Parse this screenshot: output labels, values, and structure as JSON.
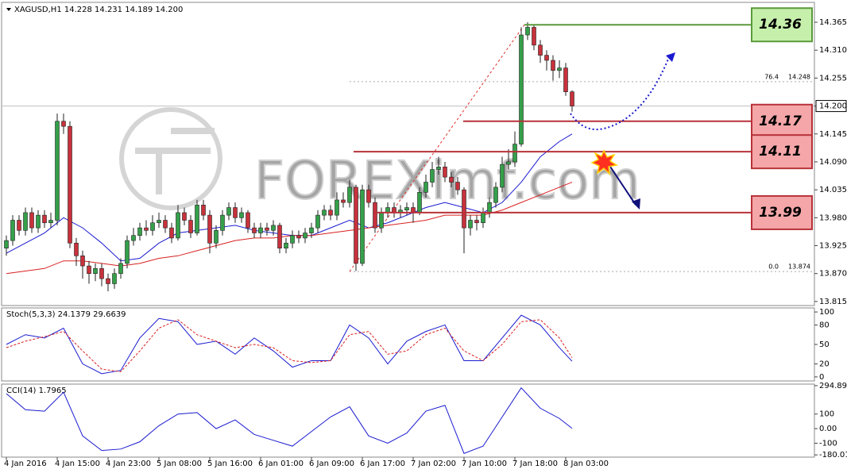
{
  "chart_data": [
    {
      "type": "candlestick",
      "header": "XAGUSD,H1 14.228 14.231 14.189 14.200",
      "up_color": "#35a04a",
      "down_color": "#c8323c",
      "open": [
        13.92,
        13.935,
        13.975,
        13.955,
        13.99,
        13.96,
        13.985,
        13.97,
        13.975,
        14.17,
        14.16,
        13.93,
        13.905,
        13.885,
        13.87,
        13.88,
        13.86,
        13.85,
        13.87,
        13.89,
        13.935,
        13.945,
        13.96,
        13.955,
        13.97,
        13.975,
        13.96,
        13.94,
        13.99,
        13.975,
        13.95,
        14.005,
        13.985,
        13.93,
        13.955,
        13.985,
        14.0,
        13.98,
        13.99,
        13.96,
        13.95,
        13.96,
        13.955,
        13.965,
        13.92,
        13.93,
        13.945,
        13.94,
        13.95,
        13.96,
        13.985,
        13.995,
        13.985,
        14.015,
        14.01,
        14.04,
        13.89,
        14.035,
        14.01,
        13.96,
        13.99,
        14.0,
        13.99,
        13.995,
        14.0,
        13.99,
        14.03,
        14.05,
        14.075,
        14.08,
        14.06,
        14.05,
        14.035,
        13.96,
        13.975,
        13.97,
        13.99,
        14.01,
        14.04,
        14.085,
        14.09,
        14.125,
        14.34,
        14.355,
        14.32,
        14.3,
        14.29,
        14.27,
        14.275,
        14.228
      ],
      "high": [
        13.945,
        13.985,
        13.985,
        14.0,
        14.0,
        13.995,
        13.995,
        13.99,
        14.185,
        14.185,
        14.17,
        13.94,
        13.915,
        13.895,
        13.89,
        13.89,
        13.87,
        13.88,
        13.9,
        13.945,
        13.96,
        13.97,
        13.975,
        13.985,
        13.99,
        13.985,
        13.97,
        14.005,
        14.0,
        13.985,
        14.015,
        14.015,
        13.995,
        13.965,
        13.995,
        14.01,
        14.01,
        14.0,
        13.995,
        13.97,
        13.97,
        13.97,
        13.975,
        13.97,
        13.94,
        13.955,
        13.955,
        13.96,
        13.97,
        13.995,
        14.005,
        14.005,
        14.03,
        14.03,
        14.055,
        14.045,
        14.045,
        14.045,
        14.02,
        14.0,
        14.01,
        14.01,
        14.005,
        14.01,
        14.01,
        14.04,
        14.065,
        14.09,
        14.1,
        14.09,
        14.07,
        14.06,
        14.04,
        13.985,
        13.985,
        14.0,
        14.02,
        14.05,
        14.1,
        14.115,
        14.15,
        14.355,
        14.365,
        14.36,
        14.33,
        14.31,
        14.3,
        14.29,
        14.285,
        14.231
      ],
      "low": [
        13.905,
        13.925,
        13.945,
        13.945,
        13.95,
        13.95,
        13.96,
        13.96,
        13.965,
        14.145,
        13.92,
        13.885,
        13.86,
        13.85,
        13.855,
        13.845,
        13.835,
        13.84,
        13.86,
        13.88,
        13.925,
        13.935,
        13.945,
        13.945,
        13.96,
        13.95,
        13.93,
        13.935,
        13.965,
        13.94,
        13.945,
        13.975,
        13.91,
        13.92,
        13.945,
        13.975,
        13.97,
        13.97,
        13.95,
        13.94,
        13.94,
        13.945,
        13.945,
        13.91,
        13.91,
        13.92,
        13.93,
        13.93,
        13.94,
        13.95,
        13.975,
        13.975,
        13.975,
        14.0,
        14.0,
        13.875,
        13.885,
        14.0,
        13.95,
        13.95,
        13.98,
        13.98,
        13.98,
        13.985,
        13.97,
        13.985,
        14.02,
        14.04,
        14.065,
        14.05,
        14.04,
        14.025,
        13.91,
        13.945,
        13.955,
        13.96,
        13.98,
        14.0,
        14.03,
        14.075,
        14.08,
        14.12,
        14.33,
        14.31,
        14.285,
        14.27,
        14.25,
        14.255,
        14.22,
        14.189
      ],
      "close": [
        13.935,
        13.975,
        13.955,
        13.99,
        13.96,
        13.985,
        13.97,
        13.975,
        14.17,
        14.16,
        13.93,
        13.905,
        13.885,
        13.87,
        13.88,
        13.86,
        13.85,
        13.87,
        13.89,
        13.935,
        13.945,
        13.96,
        13.955,
        13.97,
        13.975,
        13.96,
        13.94,
        13.99,
        13.975,
        13.95,
        14.005,
        13.985,
        13.93,
        13.955,
        13.985,
        14.0,
        13.98,
        13.99,
        13.96,
        13.95,
        13.96,
        13.955,
        13.965,
        13.92,
        13.93,
        13.945,
        13.94,
        13.95,
        13.96,
        13.985,
        13.995,
        13.985,
        14.015,
        14.01,
        14.04,
        13.89,
        14.035,
        14.01,
        13.96,
        13.99,
        14.0,
        13.99,
        13.995,
        14.0,
        13.99,
        14.03,
        14.05,
        14.075,
        14.08,
        14.06,
        14.05,
        14.035,
        13.96,
        13.975,
        13.97,
        13.99,
        14.01,
        14.04,
        14.085,
        14.09,
        14.125,
        14.34,
        14.355,
        14.32,
        14.3,
        14.29,
        14.27,
        14.275,
        14.228,
        14.2
      ],
      "ma_x": [
        0,
        3,
        6,
        9,
        12,
        15,
        18,
        21,
        24,
        27,
        30,
        33,
        36,
        39,
        42,
        45,
        48,
        51,
        54,
        57,
        60,
        63,
        66,
        69,
        72,
        75,
        78,
        81,
        84,
        87,
        89
      ],
      "ma": [
        {
          "color": "#1a1ad0",
          "values": [
            13.91,
            13.93,
            13.95,
            13.98,
            13.96,
            13.93,
            13.895,
            13.9,
            13.93,
            13.95,
            13.955,
            13.96,
            13.965,
            13.955,
            13.95,
            13.945,
            13.945,
            13.96,
            13.975,
            13.96,
            13.97,
            13.985,
            14.0,
            14.01,
            14.0,
            13.99,
            14.01,
            14.05,
            14.1,
            14.13,
            14.145
          ]
        },
        {
          "color": "#d82020",
          "values": [
            13.87,
            13.875,
            13.88,
            13.895,
            13.895,
            13.89,
            13.885,
            13.89,
            13.9,
            13.905,
            13.915,
            13.925,
            13.935,
            13.94,
            13.94,
            13.945,
            13.945,
            13.95,
            13.955,
            13.96,
            13.965,
            13.97,
            13.975,
            13.985,
            13.985,
            13.985,
            13.995,
            14.01,
            14.025,
            14.04,
            14.05
          ]
        }
      ],
      "ylim": [
        13.807,
        14.401
      ],
      "yticks": [
        14.365,
        {
          "value": 14.31,
          "label": "14.310"
        },
        14.255,
        {
          "value": 14.2,
          "label": "14.200"
        },
        14.145,
        {
          "value": 14.09,
          "label": "14.090"
        },
        14.035,
        {
          "value": 13.98,
          "label": "13.980"
        },
        13.925,
        {
          "value": 13.87,
          "label": "13.870"
        },
        13.815
      ],
      "xticks": [
        {
          "value": 0,
          "label": "4 Jan 2016"
        },
        {
          "value": 8,
          "label": "4 Jan 15:00"
        },
        {
          "value": 16,
          "label": "4 Jan 23:00"
        },
        {
          "value": 24,
          "label": "5 Jan 08:00"
        },
        {
          "value": 32,
          "label": "5 Jan 16:00"
        },
        {
          "value": 40,
          "label": "6 Jan 01:00"
        },
        {
          "value": 48,
          "label": "6 Jan 09:00"
        },
        {
          "value": 56,
          "label": "6 Jan 17:00"
        },
        {
          "value": 64,
          "label": "7 Jan 02:00"
        },
        {
          "value": 72,
          "label": "7 Jan 10:00"
        },
        {
          "value": 80,
          "label": "7 Jan 18:00"
        },
        {
          "value": 88,
          "label": "8 Jan 03:00"
        }
      ],
      "fib": [
        {
          "label": "76.4",
          "value": 14.248
        },
        {
          "label": "0.0",
          "value": 13.874
        }
      ],
      "levels": [
        14.36,
        14.17,
        14.11,
        13.99
      ],
      "level_colors": [
        "#c6efac",
        "#f4a6a8",
        "#f4a6a8",
        "#f4a6a8"
      ],
      "level_line_colors": [
        "#5a9a3a",
        "#b8323a",
        "#b8323a",
        "#b8323a"
      ],
      "watermark": "FOREXimf.com"
    },
    {
      "type": "line",
      "title": "Stoch(5,3,3) 24.1379 29.6639",
      "x": [
        0,
        3,
        6,
        9,
        12,
        15,
        18,
        21,
        24,
        27,
        30,
        33,
        36,
        39,
        42,
        45,
        48,
        51,
        54,
        57,
        60,
        63,
        66,
        69,
        72,
        75,
        78,
        81,
        84,
        87,
        89
      ],
      "series": [
        {
          "color": "#1a1ad0",
          "values": [
            50,
            65,
            60,
            75,
            20,
            5,
            10,
            60,
            90,
            85,
            50,
            55,
            35,
            60,
            40,
            15,
            25,
            25,
            80,
            60,
            20,
            55,
            70,
            80,
            25,
            25,
            60,
            95,
            80,
            45,
            24.1379
          ]
        },
        {
          "color": "#d82020",
          "dashed": true,
          "values": [
            45,
            55,
            62,
            70,
            40,
            12,
            8,
            40,
            75,
            88,
            65,
            55,
            45,
            50,
            45,
            25,
            22,
            25,
            65,
            70,
            35,
            40,
            65,
            75,
            40,
            25,
            50,
            85,
            88,
            60,
            29.6639
          ]
        }
      ],
      "ylim": [
        -5,
        105
      ],
      "yticks": [
        100,
        80,
        50,
        20,
        0
      ]
    },
    {
      "type": "line",
      "title": "CCI(14) 1.7965",
      "x": [
        0,
        3,
        6,
        9,
        12,
        15,
        18,
        21,
        24,
        27,
        30,
        33,
        36,
        39,
        42,
        45,
        48,
        51,
        54,
        57,
        60,
        63,
        66,
        69,
        72,
        75,
        78,
        81,
        84,
        87,
        89
      ],
      "series": [
        {
          "color": "#1a1ad0",
          "values": [
            240,
            130,
            120,
            250,
            -50,
            -150,
            -140,
            -90,
            20,
            100,
            110,
            0,
            60,
            -40,
            -80,
            -120,
            -20,
            80,
            150,
            -50,
            -100,
            -30,
            120,
            160,
            -170,
            -120,
            80,
            280,
            140,
            70,
            1.7965
          ]
        }
      ],
      "ylim": [
        -190,
        300
      ],
      "yticks": [
        294.8984,
        100,
        {
          "value": 0,
          "label": "0.00"
        },
        -100,
        {
          "value": -180.01,
          "label": "-180.010"
        }
      ]
    }
  ]
}
